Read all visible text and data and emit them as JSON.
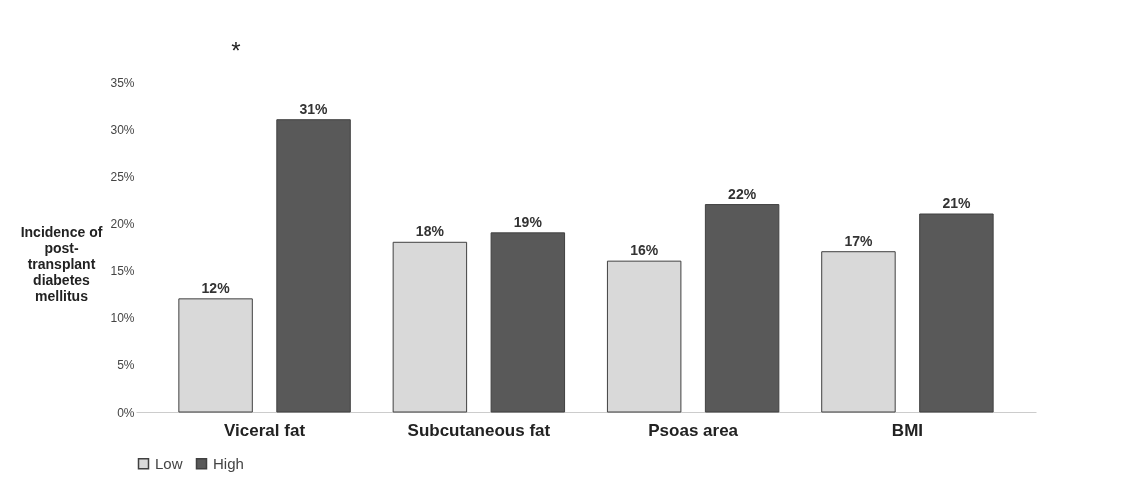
{
  "chart_data": {
    "type": "bar",
    "ylabel": "Incidence of post-transplant diabetes mellitus",
    "categories": [
      "Viceral fat",
      "Subcutaneous fat",
      "Psoas area",
      "BMI"
    ],
    "series": [
      {
        "name": "Low",
        "color": "#d9d9d9",
        "values": [
          12,
          18,
          16,
          17
        ],
        "value_labels": [
          "12%",
          "18%",
          "16%",
          "17%"
        ]
      },
      {
        "name": "High",
        "color": "#595959",
        "values": [
          31,
          19,
          22,
          21
        ],
        "value_labels": [
          "31%",
          "19%",
          "22%",
          "21%"
        ]
      }
    ],
    "ylim": [
      0,
      35
    ],
    "yticks": [
      {
        "value": 0,
        "label": "0%"
      },
      {
        "value": 5,
        "label": "5%"
      },
      {
        "value": 10,
        "label": "10%"
      },
      {
        "value": 15,
        "label": "15%"
      },
      {
        "value": 20,
        "label": "20%"
      },
      {
        "value": 25,
        "label": "25%"
      },
      {
        "value": 30,
        "label": "30%"
      },
      {
        "value": 35,
        "label": "35%"
      }
    ],
    "annotations": [
      "*"
    ],
    "grid": false,
    "legend": "bottom"
  }
}
